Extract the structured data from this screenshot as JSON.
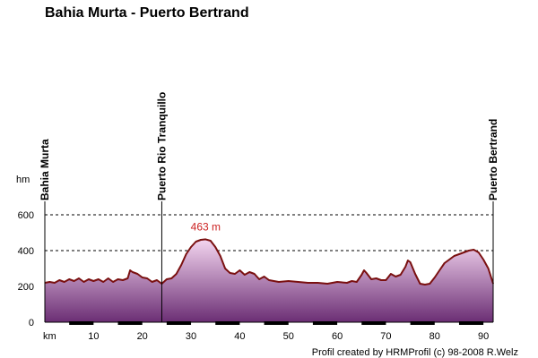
{
  "chart_data": {
    "type": "area",
    "title": "Bahia Murta - Puerto Bertrand",
    "xlabel": "km",
    "ylabel": "hm",
    "xlim": [
      0,
      92
    ],
    "ylim": [
      0,
      600
    ],
    "x_ticks": [
      10,
      20,
      30,
      40,
      50,
      60,
      70,
      80,
      90
    ],
    "y_ticks": [
      0,
      200,
      400,
      600
    ],
    "grid": "horizontal dashed",
    "places": [
      {
        "name": "Bahia Murta",
        "km": 0
      },
      {
        "name": "Puerto Rio Tranquillo",
        "km": 24
      },
      {
        "name": "Puerto Bertrand",
        "km": 92
      }
    ],
    "peak": {
      "label": "463 m",
      "km": 33,
      "elevation": 463
    },
    "credit": "Profil created by HRMProfil (c) 98-2008 R.Welz",
    "colors": {
      "line": "#7a1010",
      "fill_top": "#f4d6f0",
      "fill_bottom": "#6b2e74",
      "peak_label": "#cc2222",
      "axis": "#000000"
    },
    "x": [
      0,
      1,
      2,
      3,
      4,
      5,
      6,
      7,
      8,
      9,
      10,
      11,
      12,
      13,
      14,
      15,
      16,
      17,
      17.5,
      18,
      19,
      20,
      21,
      22,
      23,
      24,
      25,
      26,
      27,
      28,
      29,
      30,
      31,
      32,
      33,
      34,
      35,
      36,
      37,
      38,
      39,
      40,
      41,
      42,
      43,
      44,
      45,
      46,
      47,
      48,
      50,
      52,
      54,
      56,
      58,
      60,
      62,
      63,
      64,
      65,
      65.5,
      66,
      67,
      68,
      69,
      70,
      71,
      72,
      73,
      74,
      74.5,
      75,
      76,
      77,
      78,
      79,
      80,
      81,
      82,
      83,
      84,
      85,
      86,
      87,
      88,
      89,
      90,
      91,
      92
    ],
    "elevation": [
      220,
      225,
      220,
      235,
      225,
      240,
      230,
      245,
      225,
      240,
      230,
      240,
      225,
      245,
      225,
      240,
      235,
      245,
      290,
      280,
      270,
      250,
      245,
      225,
      235,
      215,
      240,
      245,
      270,
      320,
      380,
      420,
      450,
      460,
      463,
      455,
      420,
      370,
      300,
      275,
      270,
      290,
      265,
      280,
      270,
      240,
      255,
      235,
      230,
      225,
      230,
      225,
      220,
      220,
      215,
      225,
      220,
      230,
      225,
      265,
      290,
      275,
      240,
      245,
      235,
      235,
      270,
      255,
      265,
      310,
      345,
      335,
      270,
      215,
      210,
      215,
      250,
      290,
      330,
      350,
      370,
      380,
      390,
      400,
      405,
      390,
      350,
      300,
      215
    ]
  }
}
